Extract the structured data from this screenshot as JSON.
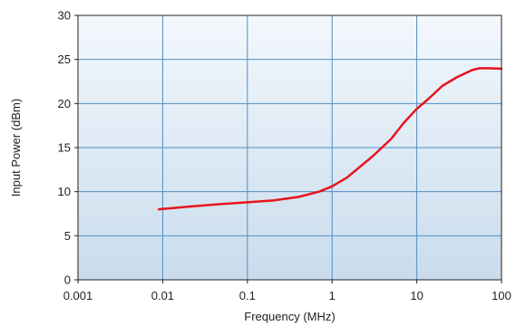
{
  "chart_data": {
    "type": "line",
    "title": "",
    "xlabel": "Frequency (MHz)",
    "ylabel": "Input Power (dBm)",
    "x_scale": "log",
    "xlim": [
      0.001,
      100
    ],
    "ylim": [
      0,
      30
    ],
    "x_ticks": [
      0.001,
      0.01,
      0.1,
      1,
      10,
      100
    ],
    "x_tick_labels": [
      "0.001",
      "0.01",
      "0.1",
      "1",
      "10",
      "100"
    ],
    "y_ticks": [
      0,
      5,
      10,
      15,
      20,
      25,
      30
    ],
    "y_tick_labels": [
      "0",
      "5",
      "10",
      "15",
      "20",
      "25",
      "30"
    ],
    "grid": true,
    "legend": "none",
    "colors": {
      "line": "#e8141c",
      "grid": "#4f8fc4",
      "plot_bg_top": "#f3f8fd",
      "plot_bg_bottom": "#c9dcec",
      "axis": "#222222"
    },
    "series": [
      {
        "x": [
          0.009,
          0.02,
          0.05,
          0.1,
          0.2,
          0.4,
          0.7,
          1,
          1.5,
          2,
          3,
          5,
          7,
          10,
          14,
          20,
          30,
          45,
          55,
          70,
          100
        ],
        "y": [
          8.0,
          8.3,
          8.6,
          8.8,
          9.0,
          9.4,
          10.0,
          10.6,
          11.6,
          12.6,
          14.0,
          16.0,
          17.8,
          19.4,
          20.6,
          22.0,
          23.0,
          23.8,
          24.0,
          24.0,
          23.95
        ]
      }
    ]
  }
}
